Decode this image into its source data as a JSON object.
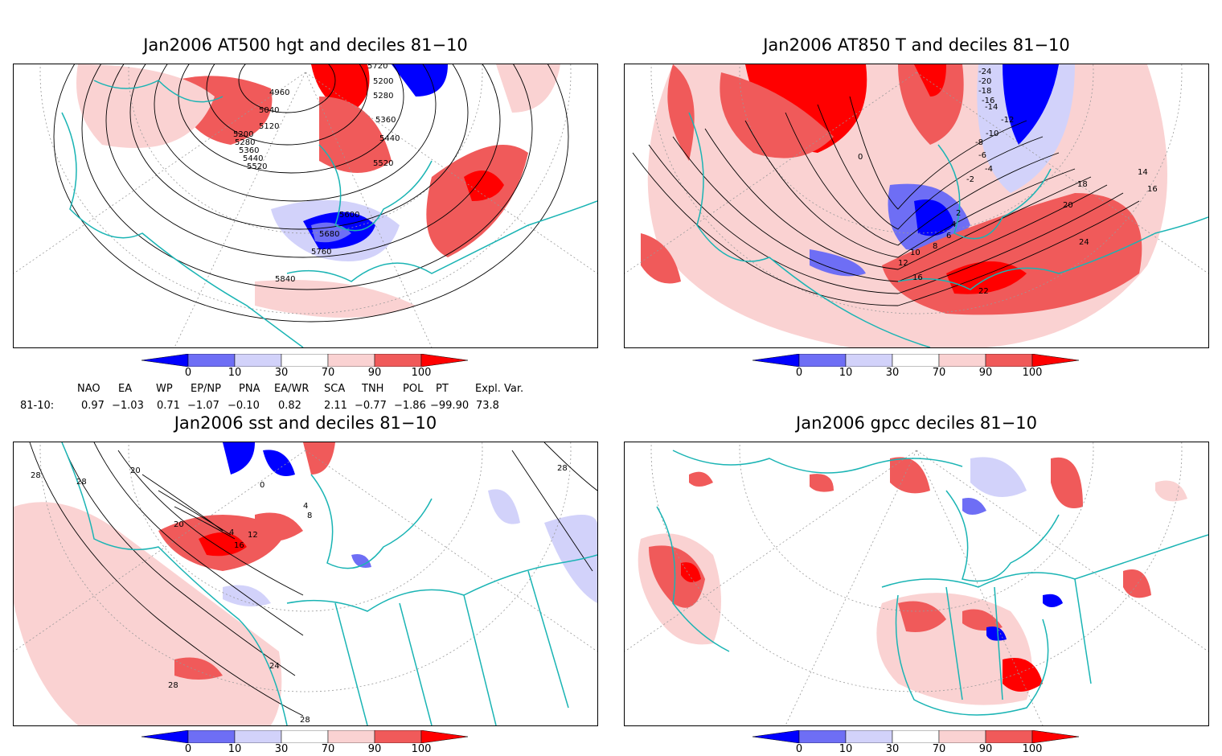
{
  "panels": [
    {
      "id": "hgt",
      "title": "Jan2006 AT500 hgt and deciles 81−10",
      "contour_labels": [
        "4960",
        "5040",
        "5120",
        "5200",
        "5280",
        "5360",
        "5440",
        "5520",
        "5600",
        "5680",
        "5760",
        "5840",
        "5720",
        "5200",
        "5280",
        "5360",
        "5440",
        "5520"
      ]
    },
    {
      "id": "t850",
      "title": "Jan2006 AT850 T and deciles 81−10",
      "contour_labels": [
        "-24",
        "-20",
        "-18",
        "-16",
        "-14",
        "-12",
        "-10",
        "-8",
        "-6",
        "-4",
        "-2",
        "0",
        "2",
        "4",
        "6",
        "8",
        "10",
        "12",
        "16",
        "18",
        "20",
        "22",
        "24",
        "14",
        "16"
      ]
    },
    {
      "id": "sst",
      "title": "Jan2006 sst and deciles 81−10",
      "contour_labels": [
        "28",
        "28",
        "20",
        "0",
        "4",
        "8",
        "4",
        "12",
        "16",
        "20",
        "24",
        "28",
        "28",
        "28"
      ]
    },
    {
      "id": "gpcc",
      "title": "Jan2006 gpcc deciles 81−10",
      "contour_labels": []
    }
  ],
  "colorbar": {
    "ticks": [
      "0",
      "10",
      "30",
      "70",
      "90",
      "100"
    ],
    "colors": {
      "dark_blue": "#0000ff",
      "mid_blue": "#6e6ef5",
      "light_blue": "#d2d2fa",
      "white": "#ffffff",
      "light_red": "#fad2d2",
      "mid_red": "#f05a5a",
      "dark_red": "#ff0000"
    }
  },
  "indices": {
    "headers": [
      "NAO",
      "EA",
      "WP",
      "EP/NP",
      "PNA",
      "EA/WR",
      "SCA",
      "TNH",
      "POL",
      "PT",
      "Expl. Var."
    ],
    "row_label": "81-10:",
    "values": [
      "0.97",
      "−1.03",
      "0.71",
      "−1.07",
      "−0.10",
      "0.82",
      "2.11",
      "−0.77",
      "−1.86",
      "−99.90",
      "73.8"
    ]
  },
  "map_colors": {
    "coast": "#1ab4b4",
    "contour": "#000000",
    "grid": "#999999"
  }
}
